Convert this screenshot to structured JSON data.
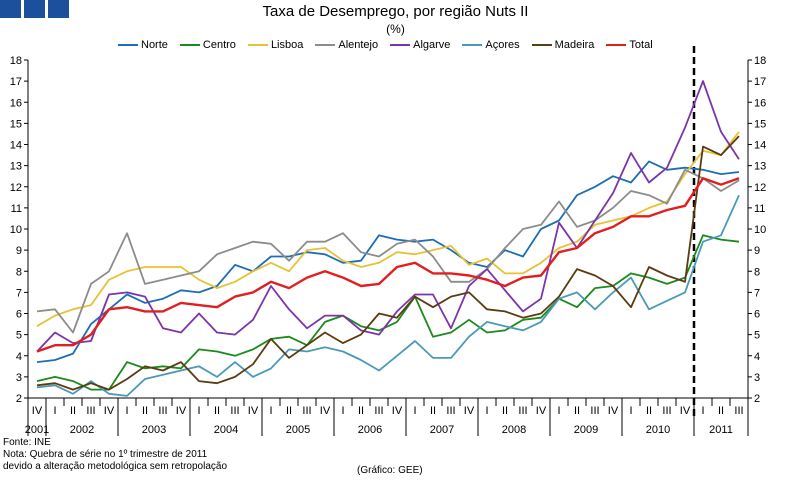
{
  "header": {
    "logo_icon": "ine-logo-icon",
    "title": "Taxa de Desemprego, por região Nuts II",
    "subtitle": "(%)"
  },
  "notes": {
    "source": "Fonte: INE",
    "note_line1": "Nota: Quebra de série no 1º trimestre de 2011",
    "note_line2": "devido a alteração metodológica sem retropolação",
    "credit": "(Gráfico: GEE)"
  },
  "chart_data": {
    "type": "line",
    "title": "Taxa de Desemprego, por região Nuts II",
    "subtitle": "(%)",
    "xlabel": "",
    "ylabel": "%",
    "ylim": [
      2,
      18
    ],
    "yticks": [
      2,
      3,
      4,
      5,
      6,
      7,
      8,
      9,
      10,
      11,
      12,
      13,
      14,
      15,
      16,
      17,
      18
    ],
    "grid": false,
    "legend_position": "top",
    "series_break": {
      "after_index": 36,
      "label": "Quebra de série no 1º trimestre de 2011",
      "style": "dashed"
    },
    "quarters": [
      "IV",
      "I",
      "II",
      "III",
      "IV",
      "I",
      "II",
      "III",
      "IV",
      "I",
      "II",
      "III",
      "IV",
      "I",
      "II",
      "III",
      "IV",
      "I",
      "II",
      "III",
      "IV",
      "I",
      "II",
      "III",
      "IV",
      "I",
      "II",
      "III",
      "IV",
      "I",
      "II",
      "III",
      "IV",
      "I",
      "II",
      "III",
      "IV",
      "I",
      "II",
      "III"
    ],
    "years": [
      {
        "label": "2001",
        "start": 0,
        "end": 0
      },
      {
        "label": "2002",
        "start": 1,
        "end": 4
      },
      {
        "label": "2003",
        "start": 5,
        "end": 8
      },
      {
        "label": "2004",
        "start": 9,
        "end": 12
      },
      {
        "label": "2005",
        "start": 13,
        "end": 16
      },
      {
        "label": "2006",
        "start": 17,
        "end": 20
      },
      {
        "label": "2007",
        "start": 21,
        "end": 24
      },
      {
        "label": "2008",
        "start": 25,
        "end": 28
      },
      {
        "label": "2009",
        "start": 29,
        "end": 32
      },
      {
        "label": "2010",
        "start": 33,
        "end": 36
      },
      {
        "label": "2011",
        "start": 37,
        "end": 39
      }
    ],
    "series": [
      {
        "name": "Norte",
        "color": "#1f6eb4",
        "values": [
          3.7,
          3.8,
          4.1,
          5.5,
          6.2,
          6.9,
          6.5,
          6.7,
          7.1,
          7.0,
          7.3,
          8.3,
          8.0,
          8.7,
          8.7,
          8.9,
          8.8,
          8.4,
          8.5,
          9.7,
          9.5,
          9.4,
          9.5,
          9.0,
          8.4,
          8.2,
          9.0,
          8.7,
          10.0,
          10.4,
          11.6,
          12.0,
          12.5,
          12.2,
          13.2,
          12.8,
          12.9,
          12.8,
          12.6,
          12.7
        ]
      },
      {
        "name": "Centro",
        "color": "#1c8a1c",
        "values": [
          2.8,
          3.0,
          2.8,
          2.4,
          2.4,
          3.7,
          3.4,
          3.5,
          3.4,
          4.3,
          4.2,
          4.0,
          4.3,
          4.8,
          4.9,
          4.5,
          5.6,
          5.9,
          5.4,
          5.2,
          5.6,
          6.8,
          4.9,
          5.1,
          5.7,
          5.1,
          5.2,
          5.7,
          5.8,
          6.7,
          6.3,
          7.2,
          7.3,
          7.9,
          7.7,
          7.4,
          7.7,
          9.7,
          9.5,
          9.4
        ]
      },
      {
        "name": "Lisboa",
        "color": "#e6c235",
        "values": [
          5.4,
          5.9,
          6.2,
          6.4,
          7.6,
          8.0,
          8.2,
          8.2,
          8.2,
          7.6,
          7.2,
          7.5,
          8.0,
          8.4,
          8.0,
          9.0,
          9.1,
          8.5,
          8.2,
          8.4,
          8.9,
          8.8,
          9.0,
          9.2,
          8.3,
          8.6,
          7.9,
          7.9,
          8.4,
          9.1,
          9.4,
          10.2,
          10.4,
          10.6,
          11.0,
          11.3,
          12.6,
          13.7,
          13.5,
          14.6
        ]
      },
      {
        "name": "Alentejo",
        "color": "#8c8c8c",
        "values": [
          6.1,
          6.2,
          5.1,
          7.4,
          8.0,
          9.8,
          7.4,
          7.6,
          7.8,
          8.0,
          8.8,
          9.1,
          9.4,
          9.3,
          8.5,
          9.4,
          9.4,
          9.8,
          8.9,
          8.7,
          9.3,
          9.5,
          8.7,
          7.5,
          7.5,
          8.1,
          9.1,
          10.0,
          10.2,
          11.3,
          10.1,
          10.4,
          11.0,
          11.8,
          11.6,
          11.2,
          12.8,
          12.4,
          11.8,
          12.3
        ]
      },
      {
        "name": "Algarve",
        "color": "#7b35a8",
        "values": [
          4.2,
          5.1,
          4.6,
          4.7,
          6.9,
          7.0,
          6.8,
          5.3,
          5.1,
          6.0,
          5.1,
          5.0,
          5.7,
          7.3,
          6.2,
          5.3,
          5.9,
          5.9,
          5.2,
          5.0,
          6.1,
          6.9,
          6.9,
          5.3,
          7.3,
          8.1,
          7.1,
          6.1,
          6.7,
          10.3,
          9.1,
          10.4,
          11.7,
          13.6,
          12.2,
          12.9,
          14.8,
          17.0,
          14.6,
          13.3
        ]
      },
      {
        "name": "Açores",
        "color": "#4a9ab7",
        "values": [
          2.5,
          2.6,
          2.2,
          2.8,
          2.2,
          2.1,
          2.9,
          3.1,
          3.3,
          3.5,
          3.0,
          3.7,
          3.0,
          3.4,
          4.3,
          4.2,
          4.4,
          4.2,
          3.8,
          3.3,
          4.0,
          4.7,
          3.9,
          3.9,
          4.9,
          5.6,
          5.4,
          5.2,
          5.6,
          6.7,
          7.0,
          6.2,
          7.0,
          7.7,
          6.2,
          6.6,
          7.0,
          9.4,
          9.7,
          11.6
        ]
      },
      {
        "name": "Madeira",
        "color": "#5c3a12",
        "values": [
          2.6,
          2.7,
          2.4,
          2.7,
          2.4,
          2.9,
          3.5,
          3.3,
          3.7,
          2.8,
          2.7,
          3.0,
          3.6,
          4.8,
          3.9,
          4.5,
          5.1,
          4.6,
          5.0,
          6.0,
          5.8,
          6.8,
          6.3,
          6.8,
          7.0,
          6.2,
          6.1,
          5.8,
          6.0,
          6.8,
          8.1,
          7.8,
          7.3,
          6.3,
          8.2,
          7.8,
          7.5,
          13.9,
          13.5,
          14.4
        ]
      },
      {
        "name": "Total",
        "color": "#e02020",
        "values": [
          4.2,
          4.5,
          4.5,
          5.0,
          6.2,
          6.3,
          6.1,
          6.1,
          6.5,
          6.4,
          6.3,
          6.8,
          7.0,
          7.5,
          7.2,
          7.7,
          8.0,
          7.7,
          7.3,
          7.4,
          8.2,
          8.4,
          7.9,
          7.9,
          7.8,
          7.6,
          7.3,
          7.7,
          7.8,
          8.9,
          9.1,
          9.8,
          10.1,
          10.6,
          10.6,
          10.9,
          11.1,
          12.4,
          12.1,
          12.4
        ]
      }
    ]
  }
}
